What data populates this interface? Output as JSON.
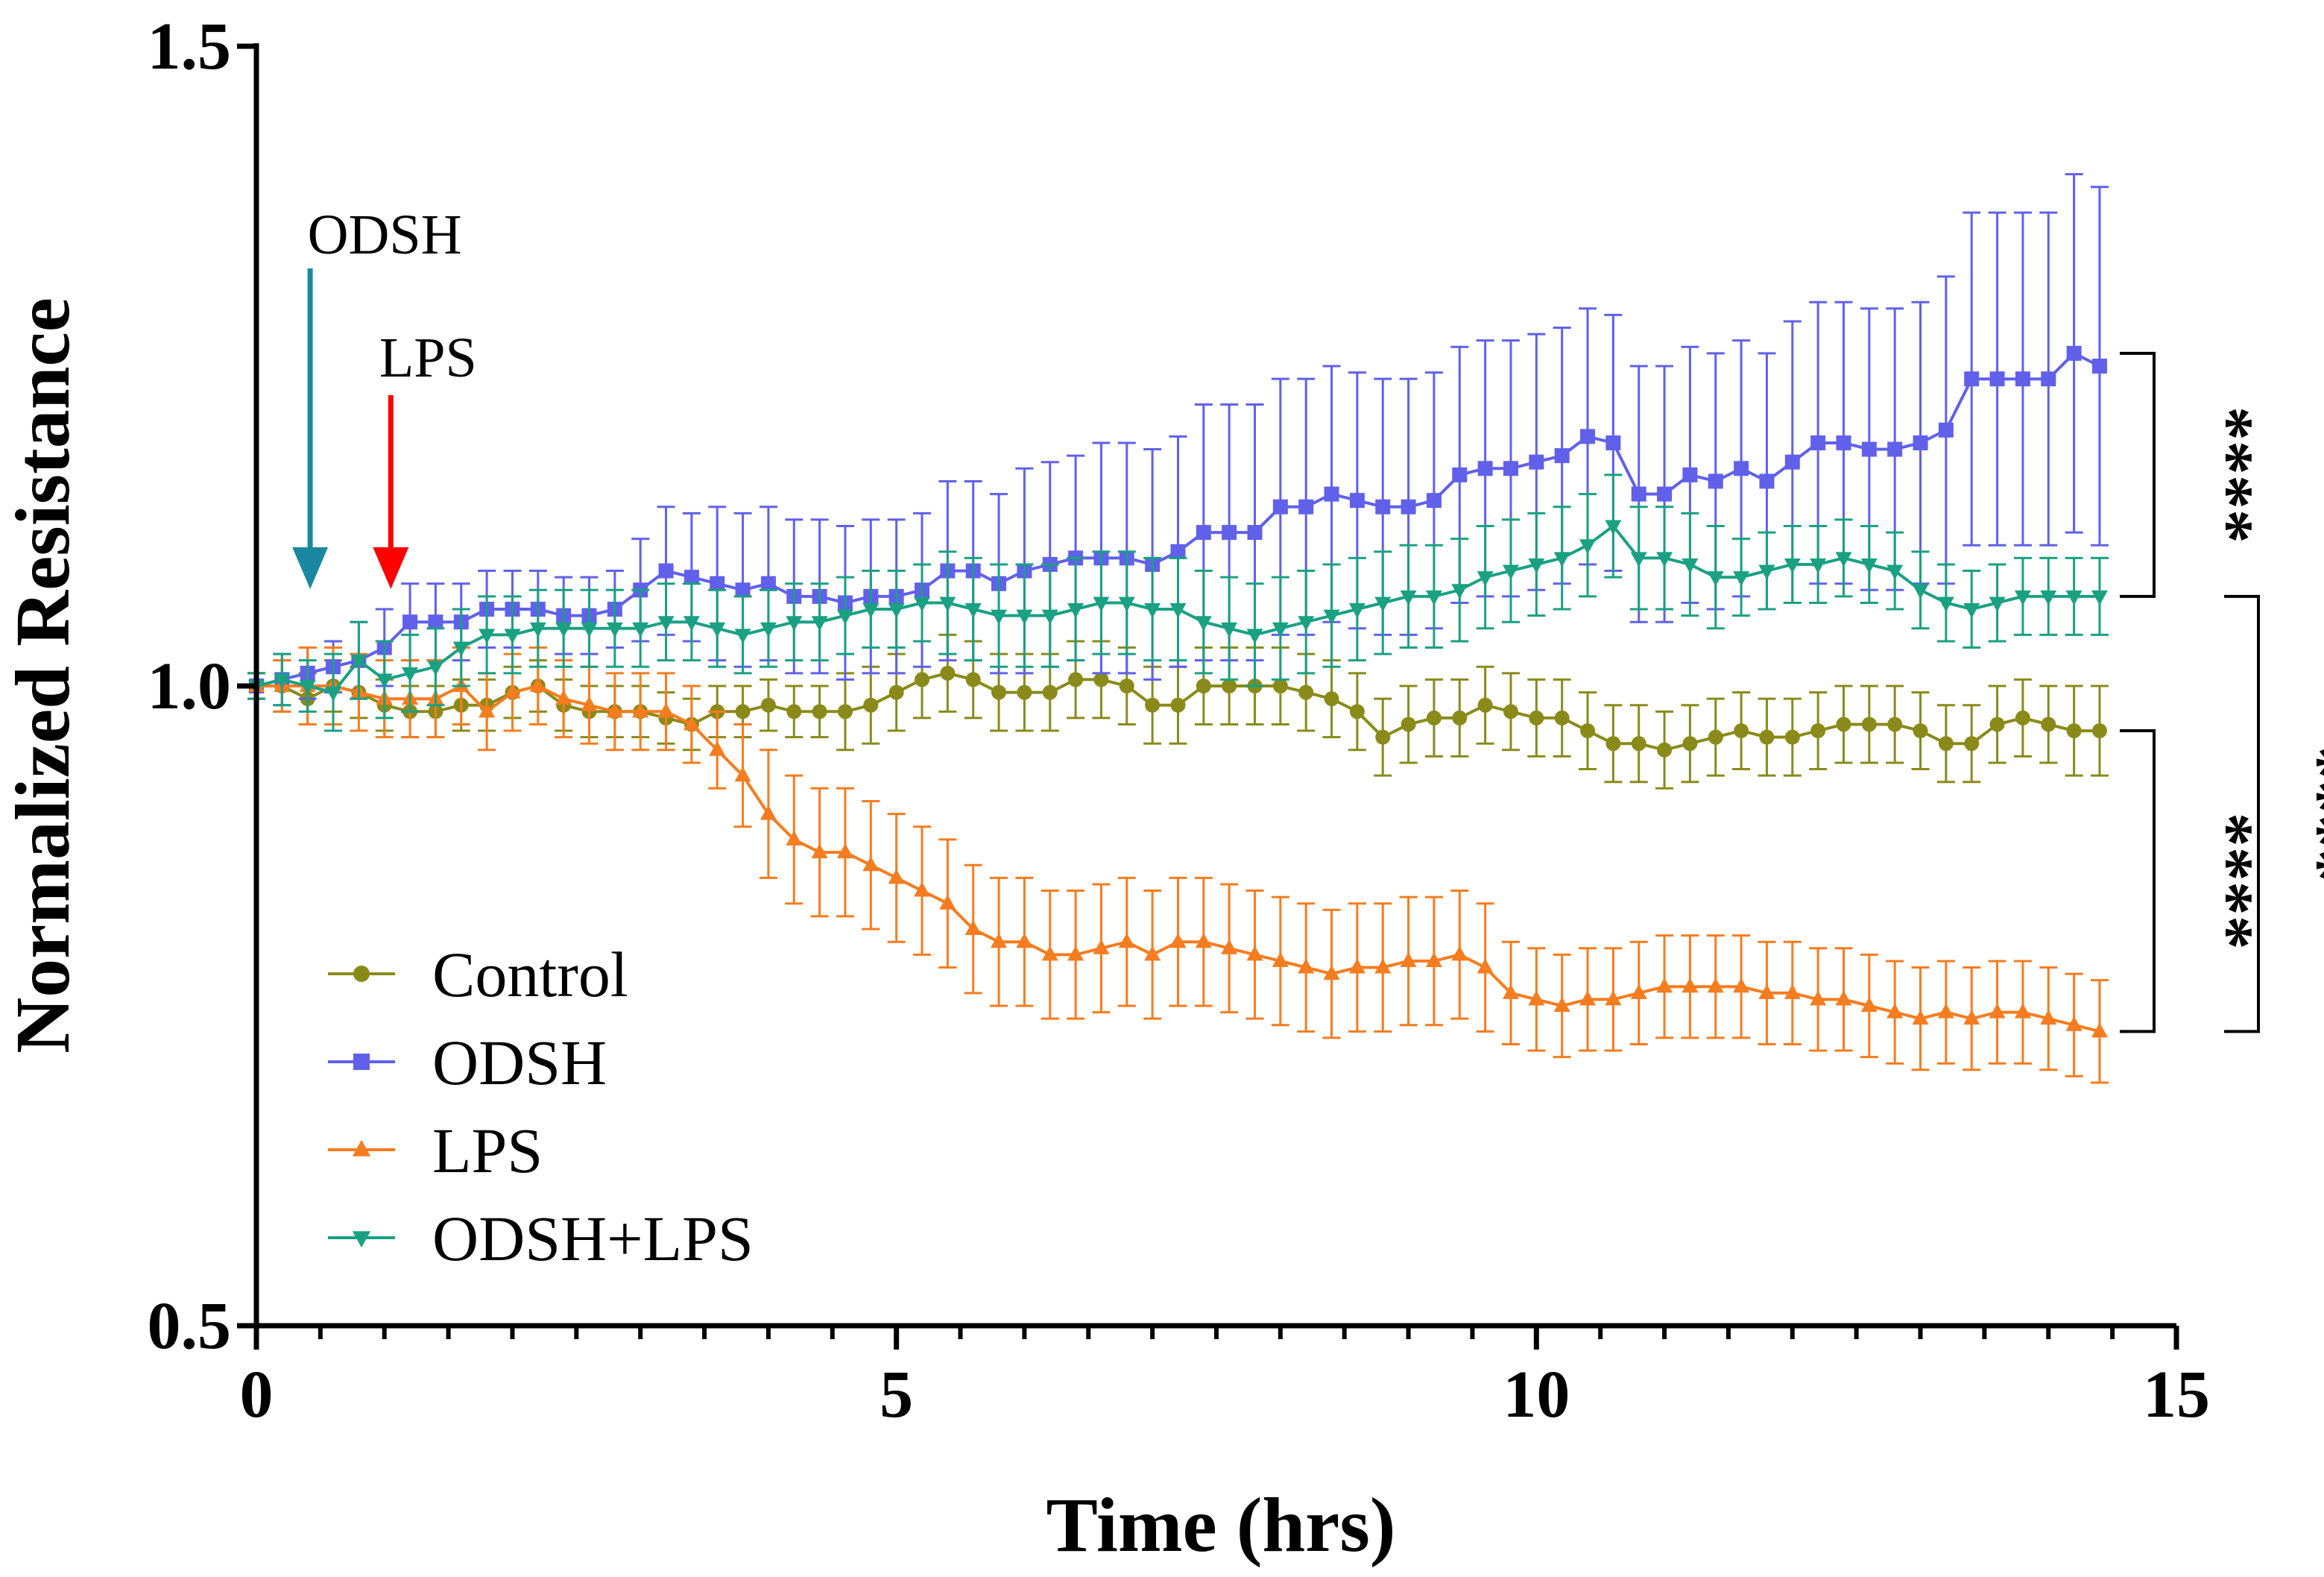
{
  "chart_data": {
    "type": "line",
    "title": "",
    "xlabel": "Time (hrs)",
    "ylabel": "Normalized Resistance",
    "xlim": [
      0,
      15
    ],
    "ylim": [
      0.5,
      1.5
    ],
    "xticks": [
      0,
      5,
      10,
      15
    ],
    "yticks": [
      0.5,
      1.0,
      1.5
    ],
    "x_tick_labels": [
      "0",
      "5",
      "10",
      "15"
    ],
    "y_tick_labels": [
      "0.5",
      "1.0",
      "1.5"
    ],
    "minor_x_step": 0.5,
    "legend_position": "bottom-left",
    "x": [
      0,
      0.2,
      0.4,
      0.6,
      0.8,
      1.0,
      1.2,
      1.4,
      1.6,
      1.8,
      2.0,
      2.2,
      2.4,
      2.6,
      2.8,
      3.0,
      3.2,
      3.4,
      3.6,
      3.8,
      4.0,
      4.2,
      4.4,
      4.6,
      4.8,
      5.0,
      5.2,
      5.4,
      5.6,
      5.8,
      6.0,
      6.2,
      6.4,
      6.6,
      6.8,
      7.0,
      7.2,
      7.4,
      7.6,
      7.8,
      8.0,
      8.2,
      8.4,
      8.6,
      8.8,
      9.0,
      9.2,
      9.4,
      9.6,
      9.8,
      10.0,
      10.2,
      10.4,
      10.6,
      10.8,
      11.0,
      11.2,
      11.4,
      11.6,
      11.8,
      12.0,
      12.2,
      12.4,
      12.6,
      12.8,
      13.0,
      13.2,
      13.4,
      13.6,
      13.8,
      14.0,
      14.2,
      14.4
    ],
    "series": [
      {
        "name": "Control",
        "color": "#8a8a1a",
        "marker": "circle",
        "values": [
          1.0,
          1.0,
          0.99,
          1.0,
          0.995,
          0.985,
          0.98,
          0.98,
          0.985,
          0.985,
          0.995,
          1.0,
          0.985,
          0.98,
          0.98,
          0.98,
          0.975,
          0.97,
          0.98,
          0.98,
          0.985,
          0.98,
          0.98,
          0.98,
          0.985,
          0.995,
          1.005,
          1.01,
          1.005,
          0.995,
          0.995,
          0.995,
          1.005,
          1.005,
          1.0,
          0.985,
          0.985,
          1.0,
          1.0,
          1.0,
          1.0,
          0.995,
          0.99,
          0.98,
          0.96,
          0.97,
          0.975,
          0.975,
          0.985,
          0.98,
          0.975,
          0.975,
          0.965,
          0.955,
          0.955,
          0.95,
          0.955,
          0.96,
          0.965,
          0.96,
          0.96,
          0.965,
          0.97,
          0.97,
          0.97,
          0.965,
          0.955,
          0.955,
          0.97,
          0.975,
          0.97,
          0.965,
          0.965
        ],
        "errors": [
          0.01,
          0.02,
          0.02,
          0.02,
          0.02,
          0.02,
          0.02,
          0.02,
          0.02,
          0.02,
          0.02,
          0.02,
          0.02,
          0.02,
          0.02,
          0.02,
          0.02,
          0.02,
          0.02,
          0.02,
          0.02,
          0.02,
          0.02,
          0.03,
          0.03,
          0.03,
          0.03,
          0.03,
          0.03,
          0.03,
          0.03,
          0.03,
          0.03,
          0.03,
          0.03,
          0.03,
          0.03,
          0.03,
          0.03,
          0.03,
          0.03,
          0.03,
          0.03,
          0.03,
          0.03,
          0.03,
          0.03,
          0.03,
          0.03,
          0.03,
          0.03,
          0.03,
          0.03,
          0.03,
          0.03,
          0.03,
          0.03,
          0.03,
          0.03,
          0.03,
          0.03,
          0.03,
          0.03,
          0.03,
          0.03,
          0.03,
          0.03,
          0.03,
          0.03,
          0.03,
          0.03,
          0.035,
          0.035
        ]
      },
      {
        "name": "ODSH",
        "color": "#6060ea",
        "marker": "square",
        "values": [
          1.0,
          1.005,
          1.01,
          1.015,
          1.02,
          1.03,
          1.05,
          1.05,
          1.05,
          1.06,
          1.06,
          1.06,
          1.055,
          1.055,
          1.06,
          1.075,
          1.09,
          1.085,
          1.08,
          1.075,
          1.08,
          1.07,
          1.07,
          1.065,
          1.07,
          1.07,
          1.075,
          1.09,
          1.09,
          1.08,
          1.09,
          1.095,
          1.1,
          1.1,
          1.1,
          1.095,
          1.105,
          1.12,
          1.12,
          1.12,
          1.14,
          1.14,
          1.15,
          1.145,
          1.14,
          1.14,
          1.145,
          1.165,
          1.17,
          1.17,
          1.175,
          1.18,
          1.195,
          1.19,
          1.15,
          1.15,
          1.165,
          1.16,
          1.17,
          1.16,
          1.175,
          1.19,
          1.19,
          1.185,
          1.185,
          1.19,
          1.2,
          1.24,
          1.24,
          1.24,
          1.24,
          1.26,
          1.25
        ],
        "errors": [
          0.01,
          0.02,
          0.02,
          0.02,
          0.03,
          0.03,
          0.03,
          0.03,
          0.03,
          0.03,
          0.03,
          0.03,
          0.03,
          0.03,
          0.03,
          0.04,
          0.05,
          0.05,
          0.06,
          0.06,
          0.06,
          0.06,
          0.06,
          0.06,
          0.06,
          0.06,
          0.06,
          0.07,
          0.07,
          0.07,
          0.08,
          0.08,
          0.08,
          0.09,
          0.09,
          0.09,
          0.09,
          0.1,
          0.1,
          0.1,
          0.1,
          0.1,
          0.1,
          0.1,
          0.1,
          0.1,
          0.1,
          0.1,
          0.1,
          0.1,
          0.1,
          0.1,
          0.1,
          0.1,
          0.1,
          0.1,
          0.1,
          0.1,
          0.1,
          0.1,
          0.11,
          0.11,
          0.11,
          0.11,
          0.11,
          0.11,
          0.12,
          0.13,
          0.13,
          0.13,
          0.13,
          0.14,
          0.14
        ]
      },
      {
        "name": "LPS",
        "color": "#f57c1f",
        "marker": "triangle-up",
        "values": [
          1.0,
          1.0,
          1.0,
          1.0,
          0.995,
          0.99,
          0.99,
          0.99,
          1.0,
          0.98,
          0.995,
          1.0,
          0.99,
          0.985,
          0.98,
          0.98,
          0.98,
          0.97,
          0.95,
          0.93,
          0.9,
          0.88,
          0.87,
          0.87,
          0.86,
          0.85,
          0.84,
          0.83,
          0.81,
          0.8,
          0.8,
          0.79,
          0.79,
          0.795,
          0.8,
          0.79,
          0.8,
          0.8,
          0.795,
          0.79,
          0.785,
          0.78,
          0.775,
          0.78,
          0.78,
          0.785,
          0.785,
          0.79,
          0.78,
          0.76,
          0.755,
          0.75,
          0.755,
          0.755,
          0.76,
          0.765,
          0.765,
          0.765,
          0.765,
          0.76,
          0.76,
          0.755,
          0.755,
          0.75,
          0.745,
          0.74,
          0.745,
          0.74,
          0.745,
          0.745,
          0.74,
          0.735,
          0.73
        ],
        "errors": [
          0.01,
          0.02,
          0.03,
          0.03,
          0.03,
          0.03,
          0.03,
          0.03,
          0.03,
          0.03,
          0.03,
          0.03,
          0.03,
          0.03,
          0.03,
          0.03,
          0.03,
          0.03,
          0.03,
          0.04,
          0.05,
          0.05,
          0.05,
          0.05,
          0.05,
          0.05,
          0.05,
          0.05,
          0.05,
          0.05,
          0.05,
          0.05,
          0.05,
          0.05,
          0.05,
          0.05,
          0.05,
          0.05,
          0.05,
          0.05,
          0.05,
          0.05,
          0.05,
          0.05,
          0.05,
          0.05,
          0.05,
          0.05,
          0.05,
          0.04,
          0.04,
          0.04,
          0.04,
          0.04,
          0.04,
          0.04,
          0.04,
          0.04,
          0.04,
          0.04,
          0.04,
          0.04,
          0.04,
          0.04,
          0.04,
          0.04,
          0.04,
          0.04,
          0.04,
          0.04,
          0.04,
          0.04,
          0.04
        ]
      },
      {
        "name": "ODSH+LPS",
        "color": "#1aa083",
        "marker": "triangle-down",
        "values": [
          1.0,
          1.005,
          1.0,
          0.995,
          1.02,
          1.005,
          1.01,
          1.015,
          1.03,
          1.04,
          1.04,
          1.045,
          1.045,
          1.045,
          1.045,
          1.045,
          1.05,
          1.05,
          1.045,
          1.04,
          1.045,
          1.05,
          1.05,
          1.055,
          1.06,
          1.06,
          1.065,
          1.065,
          1.06,
          1.055,
          1.055,
          1.055,
          1.06,
          1.065,
          1.065,
          1.06,
          1.06,
          1.05,
          1.045,
          1.04,
          1.045,
          1.05,
          1.055,
          1.06,
          1.065,
          1.07,
          1.07,
          1.075,
          1.085,
          1.09,
          1.095,
          1.1,
          1.11,
          1.125,
          1.1,
          1.1,
          1.095,
          1.085,
          1.085,
          1.09,
          1.095,
          1.095,
          1.1,
          1.095,
          1.09,
          1.075,
          1.065,
          1.06,
          1.065,
          1.07,
          1.07,
          1.07,
          1.07
        ],
        "errors": [
          0.01,
          0.02,
          0.02,
          0.03,
          0.03,
          0.03,
          0.03,
          0.03,
          0.03,
          0.03,
          0.03,
          0.03,
          0.03,
          0.03,
          0.03,
          0.03,
          0.03,
          0.03,
          0.03,
          0.03,
          0.03,
          0.03,
          0.03,
          0.03,
          0.03,
          0.03,
          0.03,
          0.04,
          0.04,
          0.04,
          0.04,
          0.04,
          0.04,
          0.04,
          0.04,
          0.04,
          0.04,
          0.04,
          0.04,
          0.04,
          0.04,
          0.04,
          0.04,
          0.04,
          0.04,
          0.04,
          0.04,
          0.04,
          0.04,
          0.04,
          0.04,
          0.04,
          0.04,
          0.04,
          0.04,
          0.04,
          0.04,
          0.04,
          0.03,
          0.03,
          0.03,
          0.03,
          0.03,
          0.03,
          0.03,
          0.03,
          0.03,
          0.03,
          0.03,
          0.03,
          0.03,
          0.03,
          0.03
        ]
      }
    ],
    "annotations": [
      {
        "text": "ODSH",
        "type": "arrow",
        "x": 0.42,
        "color": "#1a88a0"
      },
      {
        "text": "LPS",
        "type": "arrow",
        "x": 1.05,
        "color": "#ff0000"
      }
    ],
    "significance": [
      {
        "label": "****",
        "y_top": 1.26,
        "y_bottom": 1.07
      },
      {
        "label": "****",
        "y_top": 0.965,
        "y_bottom": 0.73
      },
      {
        "label": "****",
        "y_top": 1.07,
        "y_bottom": 0.73
      }
    ]
  }
}
